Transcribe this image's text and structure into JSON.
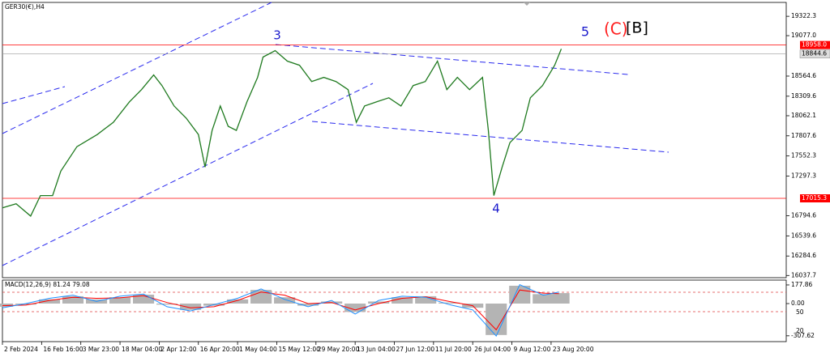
{
  "chart_data": [
    {
      "type": "line",
      "title": "GER30(€),H4",
      "color": "#1f7a1f",
      "x": [
        0,
        3.5,
        7.2,
        9.7,
        12.8,
        14.9,
        19.0,
        24.2,
        28.3,
        32.4,
        35.5,
        38.6,
        40.7,
        43.8,
        46.9,
        50.0,
        51.7,
        53.5,
        55.6,
        57.6,
        59.7,
        62.4,
        65.1,
        66.5,
        69.6,
        72.7,
        75.8,
        78.9,
        82.0,
        85.1,
        88.2,
        90.3,
        92.4,
        95.5,
        98.6,
        101.7,
        104.8,
        107.9,
        111.0,
        113.4,
        116.1,
        119.2,
        122.5,
        124.0,
        125.4,
        127.5,
        129.5,
        132.6,
        134.7,
        137.8,
        140.9,
        142.6
      ],
      "values": [
        16895,
        16947,
        16791,
        17050,
        17050,
        17360,
        17670,
        17824,
        17979,
        18238,
        18393,
        18579,
        18444,
        18186,
        18031,
        17824,
        17411,
        17876,
        18186,
        17928,
        17876,
        18238,
        18548,
        18806,
        18888,
        18754,
        18702,
        18496,
        18548,
        18496,
        18393,
        17979,
        18186,
        18238,
        18289,
        18186,
        18444,
        18496,
        18754,
        18393,
        18548,
        18393,
        18548,
        17876,
        17050,
        17411,
        17721,
        17876,
        18289,
        18444,
        18702,
        18909
      ],
      "xlim": [
        0,
        200
      ],
      "xticks": [
        {
          "value": 0,
          "label": "2 Feb 2024"
        },
        {
          "value": 10,
          "label": "16 Feb 16:00"
        },
        {
          "value": 20,
          "label": "3 Mar 23:00"
        },
        {
          "value": 30,
          "label": "18 Mar 04:00"
        },
        {
          "value": 40,
          "label": "2 Apr 12:00"
        },
        {
          "value": 50,
          "label": "16 Apr 20:00"
        },
        {
          "value": 60,
          "label": "1 May 04:00"
        },
        {
          "value": 70,
          "label": "15 May 12:00"
        },
        {
          "value": 80,
          "label": "29 May 20:00"
        },
        {
          "value": 90,
          "label": "13 Jun 04:00"
        },
        {
          "value": 100,
          "label": "27 Jun 12:00"
        },
        {
          "value": 110,
          "label": "11 Jul 20:00"
        },
        {
          "value": 120,
          "label": "26 Jul 04:00"
        },
        {
          "value": 130,
          "label": "9 Aug 12:00"
        },
        {
          "value": 140,
          "label": "23 Aug 20:00"
        }
      ],
      "ylim": [
        16010,
        19498
      ],
      "yticks": [
        19322.3,
        {
          "value": 19077,
          "label": "19077.0"
        },
        18564.6,
        18309.6,
        18062.1,
        17807.6,
        17552.3,
        17297.3,
        16794.6,
        16539.6,
        16284.6,
        16037.7
      ],
      "levels": [
        {
          "value": 18958,
          "label": "18958.0",
          "color": "#ff0000"
        },
        {
          "value": 17015.3,
          "color": "#ff0000"
        }
      ],
      "last_price": 18844.6,
      "annotations": [
        {
          "text": "3",
          "color": "#1a1acc"
        },
        {
          "text": "4",
          "color": "#1a1acc"
        },
        {
          "text": "5",
          "color": "#1a1acc"
        },
        {
          "text": "(C)",
          "color": "#ff2020"
        },
        {
          "text": "[B]",
          "color": "#000000"
        }
      ]
    },
    {
      "type": "macd",
      "title": "MACD(12,26,9) 81.24 79.08",
      "x": [
        0,
        6,
        12,
        18,
        24,
        30,
        36,
        42,
        48,
        54,
        60,
        66,
        72,
        78,
        84,
        90,
        96,
        102,
        108,
        114,
        120,
        126,
        132,
        138,
        142
      ],
      "xlim": [
        0,
        200
      ],
      "ylim": [
        -363,
        224
      ],
      "yticks": [
        177.86,
        {
          "value": 0,
          "label": "0.00"
        },
        -307.62
      ],
      "scale_notes": [
        "50",
        "20"
      ],
      "series": [
        {
          "color": "#b4b4b4",
          "values": [
            -30,
            -10,
            40,
            70,
            40,
            60,
            85,
            -10,
            -60,
            -20,
            40,
            130,
            60,
            -20,
            20,
            -80,
            20,
            60,
            70,
            10,
            -40,
            -300,
            170,
            90,
            100
          ]
        },
        {
          "color": "#ff0000",
          "values": [
            -20,
            -15,
            30,
            60,
            50,
            55,
            75,
            10,
            -40,
            -30,
            30,
            110,
            80,
            0,
            10,
            -60,
            0,
            50,
            65,
            20,
            -20,
            -250,
            130,
            100,
            95
          ]
        },
        {
          "color": "#1e90ff",
          "values": [
            -40,
            0,
            50,
            80,
            20,
            70,
            90,
            -30,
            -70,
            -10,
            50,
            140,
            40,
            -30,
            30,
            -100,
            30,
            70,
            60,
            -10,
            -60,
            -310,
            180,
            80,
            110
          ]
        }
      ]
    }
  ]
}
